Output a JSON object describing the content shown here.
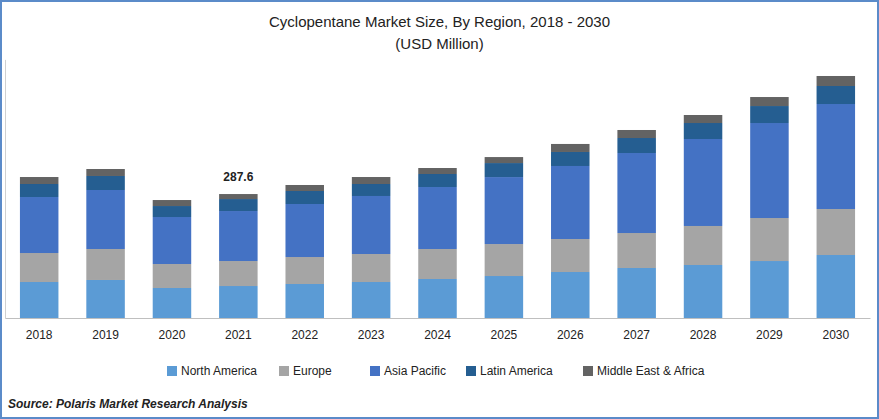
{
  "chart_data": {
    "type": "bar",
    "title": "Cyclopentane Market Size, By Region, 2018 - 2030",
    "subtitle": "(USD Million)",
    "source": "Source: Polaris Market Research Analysis",
    "stacked": true,
    "grid": false,
    "legend": "bottom",
    "tick_labels": "x",
    "categories": [
      "2018",
      "2019",
      "2020",
      "2021",
      "2022",
      "2023",
      "2024",
      "2025",
      "2026",
      "2027",
      "2028",
      "2029",
      "2030"
    ],
    "ylim": [
      0,
      600
    ],
    "yticks": [],
    "series": [
      {
        "name": "North America",
        "color": "#5B9BD5",
        "values": [
          83.5,
          88.2,
          69.6,
          74.2,
          78.9,
          83.5,
          90.5,
          97.4,
          106.7,
          116.0,
          123.0,
          132.2,
          146.2
        ]
      },
      {
        "name": "Europe",
        "color": "#A5A5A5",
        "values": [
          67.3,
          71.9,
          55.7,
          58.0,
          62.6,
          65.0,
          69.6,
          74.2,
          76.6,
          81.2,
          90.5,
          99.8,
          106.7
        ]
      },
      {
        "name": "Asia Pacific",
        "color": "#4472C4",
        "values": [
          129.9,
          136.9,
          109.0,
          116.0,
          123.0,
          134.6,
          143.8,
          155.4,
          169.4,
          185.6,
          201.8,
          220.4,
          243.6
        ]
      },
      {
        "name": "Latin America",
        "color": "#255E91",
        "values": [
          30.2,
          32.5,
          25.5,
          27.8,
          30.2,
          27.8,
          30.2,
          32.5,
          32.5,
          34.8,
          37.1,
          39.4,
          41.8
        ]
      },
      {
        "name": "Middle East & Africa",
        "color": "#636363",
        "values": [
          16.2,
          16.2,
          13.9,
          11.6,
          13.9,
          16.2,
          13.9,
          13.9,
          18.6,
          18.6,
          18.6,
          20.9,
          23.2
        ]
      }
    ],
    "annotations": [
      {
        "label": "287.6",
        "x": "2021",
        "y": 287.6
      }
    ]
  }
}
